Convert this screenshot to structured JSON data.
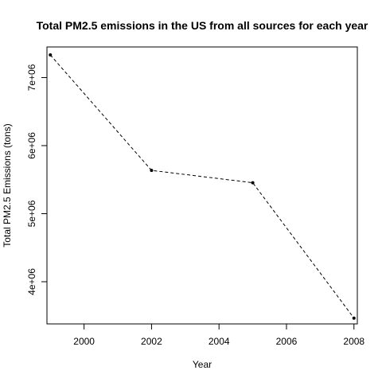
{
  "chart_data": {
    "type": "line",
    "title": "Total PM2.5 emissions in the US from all sources for each year",
    "xlabel": "Year",
    "ylabel": "Total PM2.5 Emissions (tons)",
    "xlim": [
      1998.9,
      2008.1
    ],
    "ylim": [
      3380000,
      7450000
    ],
    "x_ticks": [
      2000,
      2002,
      2004,
      2006,
      2008
    ],
    "x_tick_labels": [
      "2000",
      "2002",
      "2004",
      "2006",
      "2008"
    ],
    "y_ticks": [
      4000000,
      5000000,
      6000000,
      7000000
    ],
    "y_tick_labels": [
      "4e+06",
      "5e+06",
      "6e+06",
      "7e+06"
    ],
    "grid": false,
    "line_style": "dashed",
    "marker": "dot",
    "series": [
      {
        "x": [
          1999,
          2002,
          2005,
          2008
        ],
        "y": [
          7332967,
          5635780,
          5454703,
          3464206
        ]
      }
    ]
  }
}
